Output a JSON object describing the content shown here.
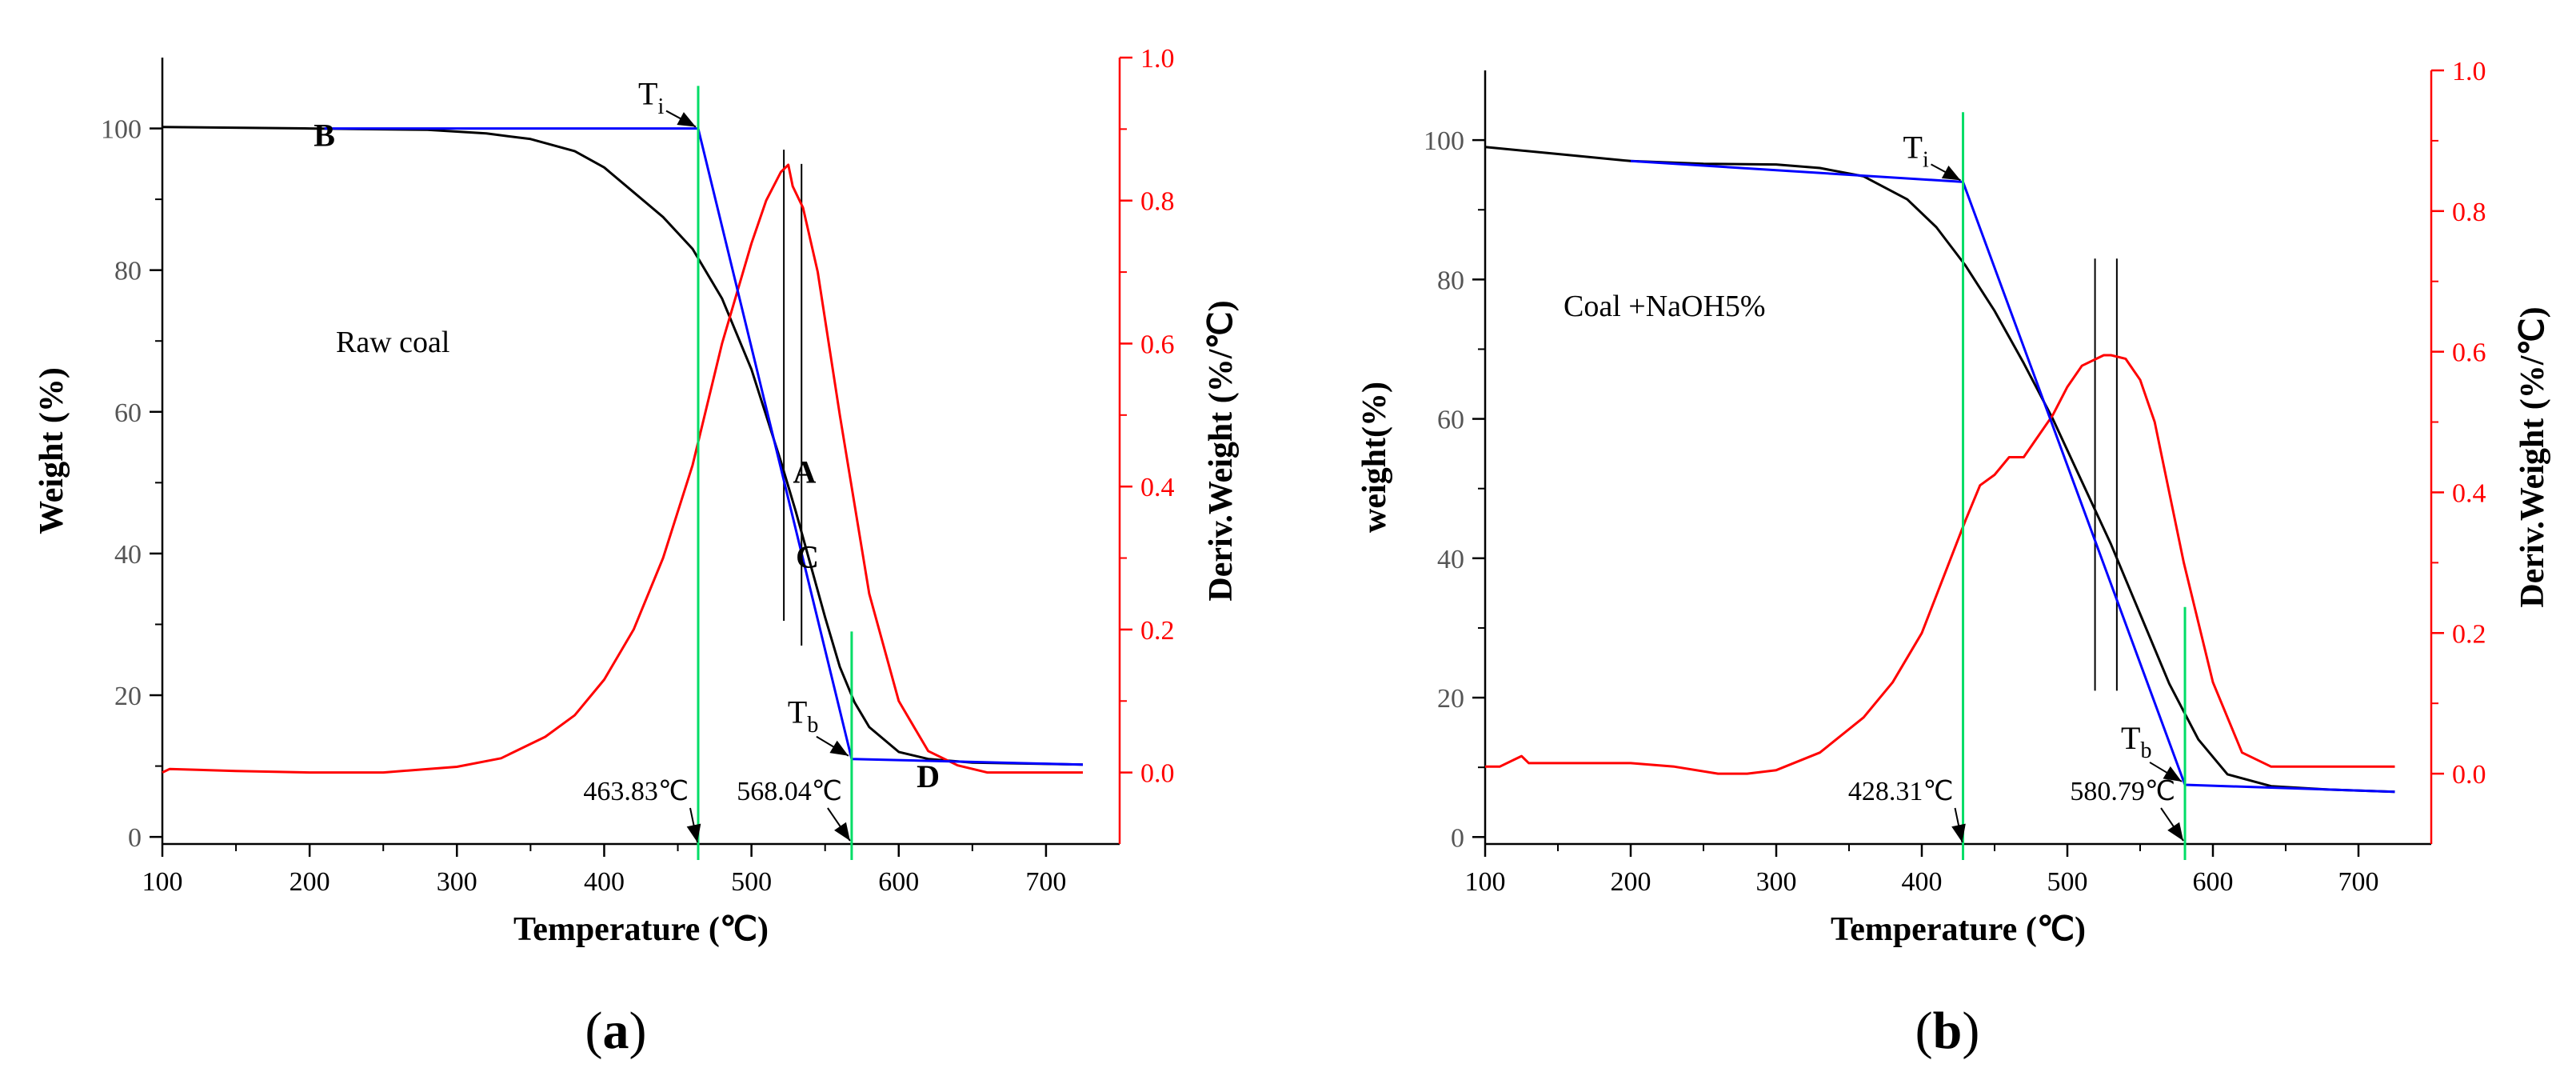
{
  "chart_data": [
    {
      "panel_label": "(a)",
      "panel_letter": "a",
      "type": "line",
      "sample_label": "Raw coal",
      "xlabel": "Temperature (℃)",
      "ylabel_left": "Weight (%)",
      "ylabel_right": "Deriv.Weight (%/℃)",
      "xlim": [
        100,
        750
      ],
      "ylim_left": [
        -1,
        110
      ],
      "ylim_right": [
        -0.1,
        1.0
      ],
      "xticks": [
        100,
        200,
        300,
        400,
        500,
        600,
        700
      ],
      "yticks_left": [
        0,
        20,
        40,
        60,
        80,
        100
      ],
      "yticks_right": [
        0.0,
        0.2,
        0.4,
        0.6,
        0.8,
        1.0
      ],
      "series": [
        {
          "name": "Weight",
          "axis": "left",
          "color": "#000000",
          "x": [
            100,
            200,
            280,
            320,
            350,
            380,
            400,
            420,
            440,
            460,
            480,
            500,
            520,
            530,
            540,
            550,
            560,
            570,
            580,
            600,
            620,
            650,
            700,
            725
          ],
          "y": [
            100.2,
            100,
            99.8,
            99.3,
            98.5,
            96.8,
            94.5,
            91,
            87.5,
            83,
            76,
            66,
            53,
            46,
            38.5,
            31,
            24,
            19,
            15.5,
            12,
            11,
            10.5,
            10.3,
            10.2
          ]
        },
        {
          "name": "Deriv. Weight",
          "axis": "right",
          "color": "#ff0000",
          "x": [
            100,
            105,
            150,
            200,
            250,
            300,
            330,
            360,
            380,
            400,
            420,
            440,
            460,
            480,
            500,
            510,
            520,
            525,
            528,
            535,
            545,
            560,
            580,
            600,
            620,
            640,
            660,
            700,
            725
          ],
          "y": [
            0.0,
            0.005,
            0.002,
            0.0,
            0.0,
            0.008,
            0.02,
            0.05,
            0.08,
            0.13,
            0.2,
            0.3,
            0.43,
            0.6,
            0.74,
            0.8,
            0.84,
            0.85,
            0.82,
            0.79,
            0.7,
            0.5,
            0.25,
            0.1,
            0.03,
            0.01,
            0.0,
            0.0,
            0.0
          ]
        },
        {
          "name": "Tangent construction",
          "axis": "left",
          "color": "#0000ff",
          "x": [
            210,
            463.83,
            568.04,
            725
          ],
          "y": [
            100,
            100,
            11,
            10.2
          ]
        }
      ],
      "point_labels": [
        {
          "text": "B",
          "x": 210,
          "y": 97.5
        },
        {
          "text": "A",
          "x": 536,
          "y": 50
        },
        {
          "text": "C",
          "x": 538,
          "y": 38
        },
        {
          "text": "D",
          "x": 620,
          "y": 7
        }
      ],
      "ti_label": "T",
      "ti_sub": "i",
      "tb_label": "T",
      "tb_sub": "b",
      "ti_value_label": "463.83℃",
      "tb_value_label": "568.04℃",
      "ti_value": 463.83,
      "tb_value": 568.04,
      "ti_point": [
        463.83,
        100
      ],
      "tb_point": [
        568.04,
        11
      ],
      "green_lines": [
        {
          "x": 463.83,
          "y_top": 106
        },
        {
          "x": 568.04,
          "y_top": 29
        }
      ],
      "black_lines": [
        {
          "x": 522,
          "y_top": 97,
          "y_bottom": 30.5
        },
        {
          "x": 534,
          "y_top": 95,
          "y_bottom": 27
        }
      ]
    },
    {
      "panel_label": "(b)",
      "panel_letter": "b",
      "type": "line",
      "sample_label": "Coal +NaOH5%",
      "xlabel": "Temperature (℃)",
      "ylabel_left": "weight(%)",
      "ylabel_right": "Deriv.Weight (%/℃)",
      "xlim": [
        100,
        750
      ],
      "ylim_left": [
        -1,
        110
      ],
      "ylim_right": [
        -0.1,
        1.0
      ],
      "xticks": [
        100,
        200,
        300,
        400,
        500,
        600,
        700
      ],
      "yticks_left": [
        0,
        20,
        40,
        60,
        80,
        100
      ],
      "yticks_right": [
        0.0,
        0.2,
        0.4,
        0.6,
        0.8,
        1.0
      ],
      "series": [
        {
          "name": "Weight",
          "axis": "left",
          "color": "#000000",
          "x": [
            100,
            150,
            200,
            250,
            300,
            330,
            360,
            390,
            410,
            430,
            450,
            470,
            490,
            510,
            530,
            550,
            570,
            590,
            610,
            640,
            680,
            725
          ],
          "y": [
            99,
            98,
            97,
            96.6,
            96.5,
            96,
            94.8,
            91.5,
            87.5,
            82,
            75.5,
            68,
            60,
            51,
            42,
            32,
            22,
            14,
            9,
            7.3,
            6.8,
            6.5
          ]
        },
        {
          "name": "Deriv. Weight",
          "axis": "right",
          "color": "#ff0000",
          "x": [
            100,
            110,
            120,
            125,
            130,
            150,
            200,
            230,
            260,
            280,
            300,
            330,
            360,
            380,
            400,
            415,
            430,
            440,
            450,
            460,
            470,
            480,
            490,
            500,
            510,
            520,
            525,
            530,
            540,
            550,
            560,
            580,
            600,
            620,
            640,
            660,
            700,
            725
          ],
          "y": [
            0.01,
            0.01,
            0.02,
            0.025,
            0.015,
            0.015,
            0.015,
            0.01,
            0.0,
            0.0,
            0.005,
            0.03,
            0.08,
            0.13,
            0.2,
            0.28,
            0.36,
            0.41,
            0.425,
            0.45,
            0.45,
            0.48,
            0.51,
            0.55,
            0.58,
            0.59,
            0.595,
            0.595,
            0.59,
            0.56,
            0.5,
            0.3,
            0.13,
            0.03,
            0.01,
            0.01,
            0.01,
            0.01
          ]
        },
        {
          "name": "Tangent construction",
          "axis": "left",
          "color": "#0000ff",
          "x": [
            200,
            428.31,
            580.79,
            725
          ],
          "y": [
            97,
            94,
            7.5,
            6.5
          ]
        }
      ],
      "point_labels": [],
      "ti_label": "T",
      "ti_sub": "i",
      "tb_label": "T",
      "tb_sub": "b",
      "ti_value_label": "428.31℃",
      "tb_value_label": "580.79℃",
      "ti_value": 428.31,
      "tb_value": 580.79,
      "ti_point": [
        428.31,
        94
      ],
      "tb_point": [
        580.79,
        7.5
      ],
      "green_lines": [
        {
          "x": 428.31,
          "y_top": 104
        },
        {
          "x": 580.79,
          "y_top": 33
        }
      ],
      "black_lines": [
        {
          "x": 519,
          "y_top": 83,
          "y_bottom": 21
        },
        {
          "x": 534,
          "y_top": 83,
          "y_bottom": 21
        }
      ]
    }
  ]
}
